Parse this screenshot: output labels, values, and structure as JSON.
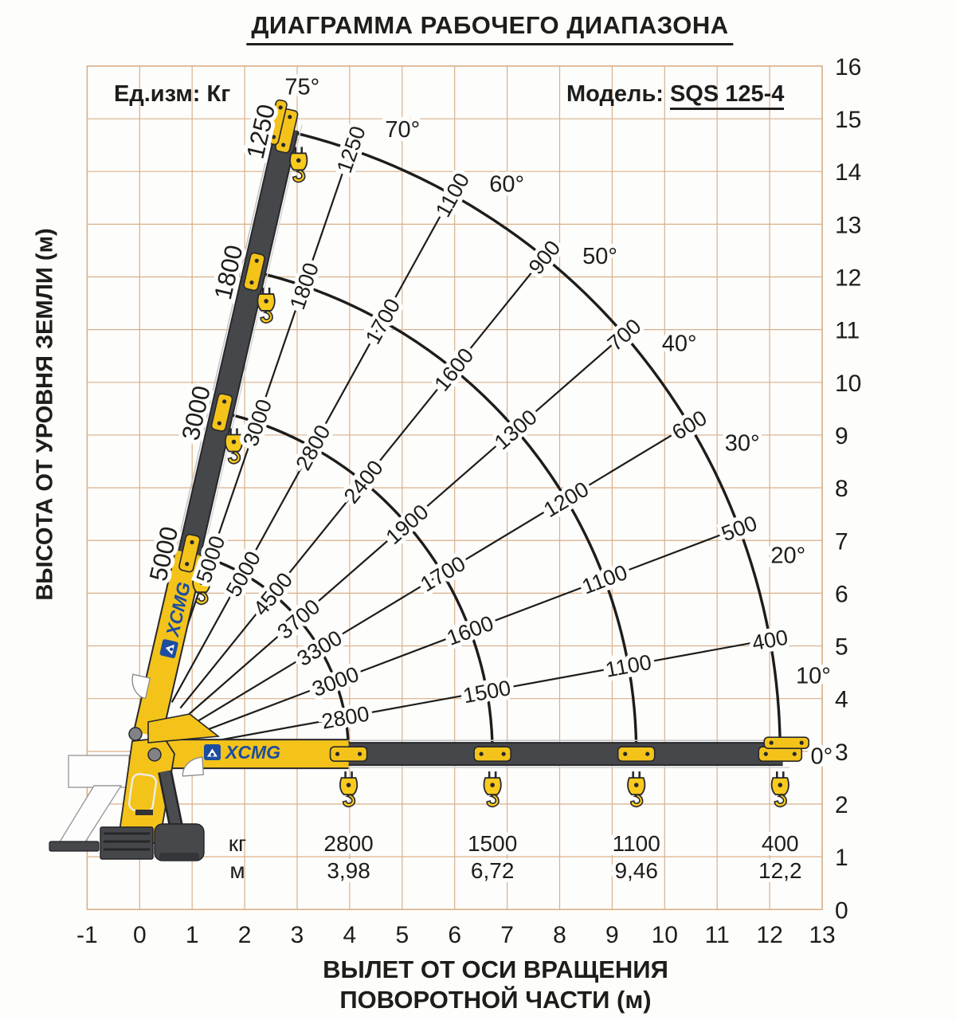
{
  "page": {
    "title": "ДИАГРАММА РАБОЧЕГО ДИАПАЗОНА"
  },
  "header": {
    "unit_label": "Ед.изм: Кг",
    "model_label": "Модель:",
    "model_value": "SQS 125-4"
  },
  "branding": {
    "logo_text": "XCMG"
  },
  "axes": {
    "x": {
      "title_line1": "ВЫЛЕТ ОТ ОСИ ВРАЩЕНИЯ",
      "title_line2": "ПОВОРОТНОЙ ЧАСТИ (м)",
      "ticks": [
        -1,
        0,
        1,
        2,
        3,
        4,
        5,
        6,
        7,
        8,
        9,
        10,
        11,
        12,
        13
      ]
    },
    "y": {
      "title": "ВЫСОТА ОТ УРОВНЯ ЗЕМЛИ (м)",
      "ticks": [
        0,
        1,
        2,
        3,
        4,
        5,
        6,
        7,
        8,
        9,
        10,
        11,
        12,
        13,
        14,
        15,
        16
      ]
    }
  },
  "chart_data": {
    "type": "line",
    "subtype": "crane-working-range-fan",
    "title": "ДИАГРАММА РАБОЧЕГО ДИАПАЗОНА",
    "model": "SQS 125-4",
    "units": "kg",
    "xlabel": "ВЫЛЕТ ОТ ОСИ ВРАЩЕНИЯ ПОВОРОТНОЙ ЧАСТИ (м)",
    "ylabel": "ВЫСОТА ОТ УРОВНЯ ЗЕМЛИ (м)",
    "xlim": [
      -1,
      13
    ],
    "ylim": [
      0,
      16
    ],
    "grid": true,
    "angle_labels": [
      "75°",
      "70°",
      "60°",
      "50°",
      "40°",
      "30°",
      "20°",
      "10°",
      "0°"
    ],
    "angles_deg": [
      75,
      70,
      60,
      50,
      40,
      30,
      20,
      10,
      0
    ],
    "extensions": [
      {
        "name": "boom-section-1",
        "outreach_at_0deg_m": 3.98,
        "capacities_kg": [
          5000,
          5000,
          5000,
          4500,
          3700,
          3300,
          3000,
          2800,
          2800
        ]
      },
      {
        "name": "boom-section-2",
        "outreach_at_0deg_m": 6.72,
        "capacities_kg": [
          3000,
          3000,
          2800,
          2400,
          1900,
          1700,
          1600,
          1500,
          1500
        ]
      },
      {
        "name": "boom-section-3",
        "outreach_at_0deg_m": 9.46,
        "capacities_kg": [
          1800,
          1800,
          1700,
          1600,
          1300,
          1200,
          1100,
          1100,
          1100
        ]
      },
      {
        "name": "boom-full-extension",
        "outreach_at_0deg_m": 12.2,
        "capacities_kg": [
          1250,
          1250,
          1100,
          900,
          700,
          600,
          500,
          400,
          400
        ]
      }
    ],
    "table": {
      "row_labels": [
        "кг",
        "м"
      ],
      "capacity_row": [
        "2800",
        "1500",
        "1100",
        "400"
      ],
      "outreach_row": [
        "3,98",
        "6,72",
        "9,46",
        "12,2"
      ]
    }
  },
  "colors": {
    "grid": "#d9b189",
    "line": "#1d1d1b",
    "crane_yellow": "#f4c31a",
    "boom_gray": "#46474b",
    "boom_outline": "#27282b",
    "logo_blue": "#1c4da0",
    "background": "#ffffff"
  }
}
